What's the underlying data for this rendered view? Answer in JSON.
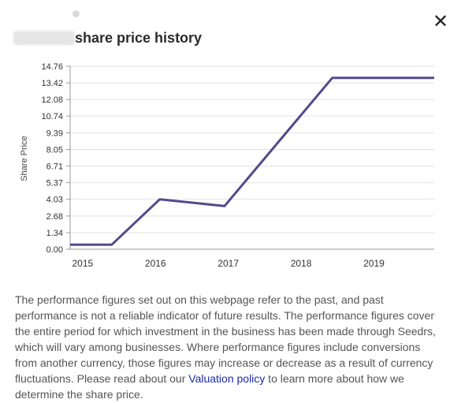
{
  "header": {
    "title": "share price history",
    "close_icon": "close-icon"
  },
  "colors": {
    "line": "#574a8c",
    "grid": "#e2e2e2",
    "axis": "#999999",
    "link": "#1a2aa8"
  },
  "chart_data": {
    "type": "line",
    "title": "share price history",
    "ylabel": "Share Price",
    "xlabel": "",
    "y_ticks": [
      "0.00",
      "1.34",
      "2.68",
      "4.03",
      "5.37",
      "6.71",
      "8.05",
      "9.39",
      "10.74",
      "12.08",
      "13.42",
      "14.76"
    ],
    "x_ticks": [
      "2015",
      "2016",
      "2017",
      "2018",
      "2019"
    ],
    "ylim": [
      0,
      14.76
    ],
    "xlim": [
      2014.85,
      2019.85
    ],
    "grid": true,
    "legend": "none",
    "series": [
      {
        "x": [
          2014.85,
          2015.42,
          2016.08,
          2016.97,
          2018.45,
          2019.85
        ],
        "y": [
          0.36,
          0.36,
          4.03,
          3.48,
          13.82,
          13.82
        ]
      }
    ]
  },
  "disclaimer": {
    "text_before": "The performance figures set out on this webpage refer to the past, and past performance is not a reliable indicator of future results. The performance figures cover the entire period for which investment in the business has been made through Seedrs, which will vary among businesses. Where performance figures include conversions from another currency, those figures may increase or decrease as a result of currency fluctuations. Please read about our ",
    "link_text": "Valuation policy",
    "text_after": " to learn more about how we determine the share price."
  }
}
